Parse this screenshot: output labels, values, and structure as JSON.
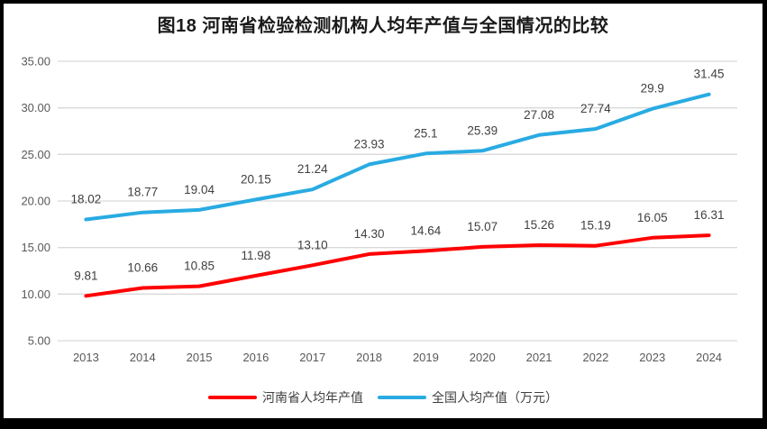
{
  "window": {
    "frame_color": "#000000",
    "background": "#ffffff"
  },
  "title": "图18  河南省检验检测机构人均年产值与全国情况的比较",
  "chart_data": {
    "type": "line",
    "title": "图18  河南省检验检测机构人均年产值与全国情况的比较",
    "categories": [
      "2013",
      "2014",
      "2015",
      "2016",
      "2017",
      "2018",
      "2019",
      "2020",
      "2021",
      "2022",
      "2023",
      "2024"
    ],
    "series": [
      {
        "name": "河南省人均年产值",
        "color": "#ff0000",
        "values": [
          9.81,
          10.66,
          10.85,
          11.98,
          13.1,
          14.3,
          14.64,
          15.07,
          15.26,
          15.19,
          16.05,
          16.31
        ],
        "labels": [
          "9.81",
          "10.66",
          "10.85",
          "11.98",
          "13.10",
          "14.30",
          "14.64",
          "15.07",
          "15.26",
          "15.19",
          "16.05",
          "16.31"
        ]
      },
      {
        "name": "全国人均产值（万元）",
        "color": "#29abe2",
        "values": [
          18.02,
          18.77,
          19.04,
          20.15,
          21.24,
          23.93,
          25.1,
          25.39,
          27.08,
          27.74,
          29.9,
          31.45
        ],
        "labels": [
          "18.02",
          "18.77",
          "19.04",
          "20.15",
          "21.24",
          "23.93",
          "25.1",
          "25.39",
          "27.08",
          "27.74",
          "29.9",
          "31.45"
        ]
      }
    ],
    "ylim": [
      5,
      35
    ],
    "yticks": [
      {
        "value": 5,
        "label": "5.00"
      },
      {
        "value": 10,
        "label": "10.00"
      },
      {
        "value": 15,
        "label": "15.00"
      },
      {
        "value": 20,
        "label": "20.00"
      },
      {
        "value": 25,
        "label": "25.00"
      },
      {
        "value": 30,
        "label": "30.00"
      },
      {
        "value": 35,
        "label": "35.00"
      }
    ],
    "xlabel": "",
    "ylabel": "",
    "grid": "horizontal",
    "legend_position": "bottom"
  },
  "colors": {
    "grid": "#d9d9d9",
    "axis_text": "#595959",
    "data_label_text": "#404040",
    "title_text": "#1a1a1a"
  }
}
